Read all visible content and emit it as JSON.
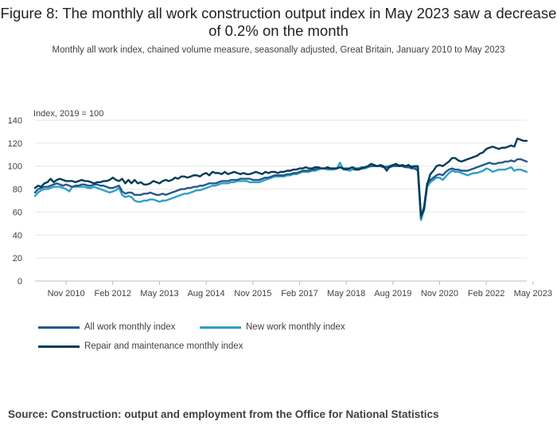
{
  "title": "Figure 8: The monthly all work construction output index in May 2023 saw a decrease of 0.2% on the month",
  "subtitle": "Monthly all work index, chained volume measure, seasonally adjusted, Great Britain, January 2010 to May 2023",
  "source": "Source: Construction: output and employment from the Office for National Statistics",
  "chart_data": {
    "type": "line",
    "ylabel": "Index, 2019 = 100",
    "ylim": [
      0,
      140
    ],
    "yticks": [
      0,
      20,
      40,
      60,
      80,
      100,
      120,
      140
    ],
    "x_start": "Jan 2010",
    "x_end": "May 2023",
    "xtick_labels": [
      "Nov 2010",
      "Feb 2012",
      "May 2013",
      "Aug 2014",
      "Nov 2015",
      "Feb 2017",
      "May 2018",
      "Aug 2019",
      "Nov 2020",
      "Feb 2022",
      "May 2023"
    ],
    "grid": true,
    "legend_position": "bottom",
    "series": [
      {
        "name": "All work monthly index",
        "color": "#27598a",
        "values": [
          77,
          80,
          81,
          82,
          82,
          83,
          84,
          85,
          84,
          83,
          84,
          83,
          82,
          83,
          83,
          84,
          84,
          83,
          83,
          84,
          84,
          83,
          83,
          82,
          81,
          81,
          82,
          83,
          78,
          76,
          77,
          77,
          75,
          75,
          75,
          76,
          76,
          77,
          76,
          75,
          75,
          76,
          75,
          76,
          77,
          78,
          79,
          80,
          80,
          81,
          81,
          82,
          82,
          83,
          83,
          84,
          85,
          85,
          85,
          86,
          87,
          87,
          87,
          88,
          88,
          88,
          89,
          89,
          89,
          89,
          88,
          88,
          88,
          89,
          90,
          90,
          91,
          92,
          92,
          92,
          92,
          93,
          93,
          94,
          94,
          95,
          96,
          96,
          96,
          97,
          97,
          98,
          98,
          98,
          98,
          98,
          98,
          98,
          99,
          98,
          98,
          98,
          99,
          98,
          98,
          99,
          99,
          100,
          100,
          100,
          100,
          100,
          99,
          99,
          99,
          100,
          100,
          100,
          100,
          99,
          99,
          98,
          98,
          96,
          55,
          65,
          85,
          88,
          90,
          92,
          93,
          92,
          95,
          97,
          98,
          97,
          97,
          96,
          96,
          96,
          97,
          98,
          99,
          100,
          101,
          102,
          103,
          102,
          102,
          103,
          103,
          104,
          104,
          105,
          104,
          106,
          106,
          105,
          104
        ]
      },
      {
        "name": "New work monthly index",
        "color": "#2da0c8",
        "values": [
          74,
          77,
          79,
          80,
          80,
          81,
          82,
          82,
          82,
          81,
          80,
          78,
          82,
          82,
          82,
          82,
          82,
          81,
          81,
          82,
          81,
          80,
          79,
          78,
          77,
          78,
          79,
          81,
          75,
          73,
          74,
          73,
          70,
          69,
          69,
          70,
          70,
          71,
          71,
          70,
          69,
          70,
          70,
          71,
          72,
          73,
          74,
          75,
          76,
          76,
          77,
          78,
          79,
          79,
          80,
          81,
          82,
          83,
          83,
          84,
          85,
          85,
          85,
          86,
          86,
          87,
          87,
          87,
          87,
          86,
          86,
          86,
          86,
          87,
          88,
          89,
          90,
          91,
          91,
          91,
          91,
          92,
          92,
          93,
          93,
          94,
          95,
          95,
          95,
          96,
          96,
          97,
          98,
          98,
          97,
          97,
          97,
          98,
          103,
          97,
          97,
          96,
          97,
          97,
          97,
          98,
          98,
          99,
          100,
          100,
          100,
          100,
          99,
          100,
          100,
          101,
          101,
          101,
          100,
          100,
          100,
          100,
          100,
          98,
          53,
          62,
          82,
          86,
          88,
          90,
          90,
          88,
          91,
          94,
          96,
          95,
          95,
          94,
          93,
          92,
          93,
          94,
          94,
          95,
          96,
          98,
          97,
          95,
          96,
          97,
          97,
          97,
          98,
          99,
          96,
          97,
          97,
          96,
          95
        ]
      },
      {
        "name": "Repair and maintenance monthly index",
        "color": "#003c57",
        "values": [
          81,
          83,
          82,
          85,
          86,
          89,
          86,
          88,
          89,
          88,
          87,
          87,
          87,
          86,
          87,
          88,
          87,
          87,
          86,
          85,
          86,
          86,
          87,
          87,
          88,
          90,
          88,
          87,
          89,
          85,
          88,
          85,
          88,
          85,
          86,
          84,
          84,
          85,
          87,
          86,
          85,
          87,
          88,
          87,
          88,
          90,
          89,
          91,
          91,
          90,
          91,
          92,
          92,
          91,
          93,
          94,
          92,
          95,
          94,
          94,
          93,
          95,
          93,
          94,
          95,
          94,
          93,
          94,
          93,
          93,
          94,
          95,
          94,
          93,
          95,
          94,
          95,
          95,
          94,
          95,
          95,
          96,
          96,
          97,
          97,
          98,
          98,
          99,
          98,
          98,
          99,
          99,
          98,
          98,
          99,
          98,
          98,
          98,
          99,
          98,
          97,
          98,
          99,
          97,
          97,
          98,
          99,
          100,
          102,
          101,
          100,
          101,
          100,
          96,
          100,
          101,
          102,
          100,
          101,
          100,
          101,
          99,
          100,
          100,
          57,
          62,
          84,
          93,
          96,
          100,
          101,
          100,
          102,
          104,
          107,
          107,
          105,
          104,
          105,
          106,
          107,
          108,
          109,
          111,
          112,
          115,
          116,
          117,
          116,
          115,
          116,
          116,
          117,
          118,
          117,
          124,
          123,
          122,
          122
        ]
      }
    ]
  }
}
